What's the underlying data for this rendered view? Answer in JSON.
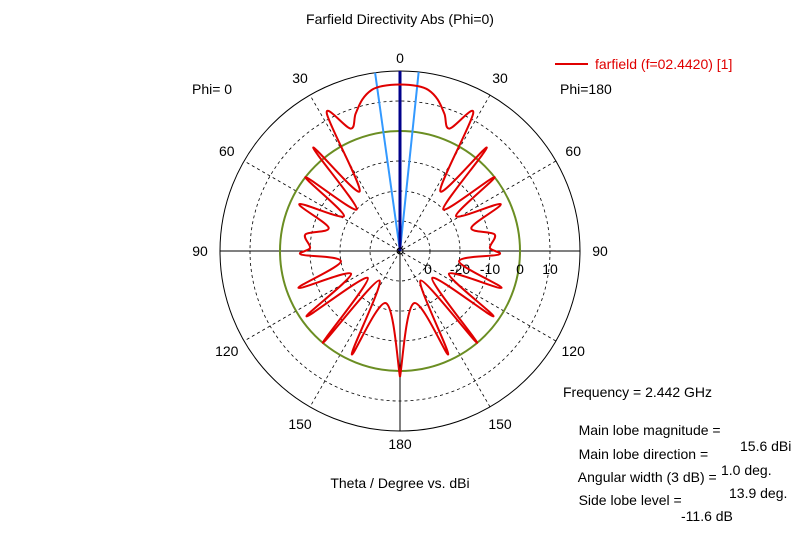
{
  "chart_data": {
    "type": "polar",
    "title": "Farfield Directivity Abs (Phi=0)",
    "xlabel": "Theta / Degree vs. dBi",
    "left_label": "Phi=  0",
    "right_label": "Phi=180",
    "angle_labels": {
      "left": [
        "30",
        "60",
        "90",
        "120",
        "150"
      ],
      "right": [
        "30",
        "60",
        "90",
        "120",
        "150"
      ],
      "top": "0",
      "bottom": "180"
    },
    "radial_tick_labels": [
      "-20",
      "-10",
      "0",
      "10"
    ],
    "radial_range_dB": [
      -40,
      20
    ],
    "grid": true,
    "legend": {
      "position": "top-right",
      "entries": [
        "farfield (f=02.4420) [1]"
      ]
    },
    "series": [
      {
        "name": "farfield (f=02.4420) [1]",
        "color": "#e00000",
        "theta_deg": [
          -180,
          -165,
          -155,
          -145,
          -140,
          -130,
          -125,
          -115,
          -110,
          -100,
          -92,
          -88,
          -80,
          -72,
          -65,
          -58,
          -52,
          -46,
          -40,
          -34,
          -28,
          -22,
          -18,
          -14,
          -10,
          -6,
          0,
          6,
          10,
          14,
          18,
          22,
          28,
          34,
          40,
          46,
          52,
          58,
          65,
          72,
          80,
          88,
          92,
          100,
          110,
          115,
          125,
          130,
          140,
          145,
          155,
          165,
          180
        ],
        "dBi": [
          2,
          -22,
          -2,
          -28,
          0,
          -26,
          -2,
          -22,
          -4,
          -20,
          -7,
          -10,
          -8,
          -15,
          -3,
          -18,
          0,
          -20,
          5,
          -16,
          12,
          4,
          8,
          12,
          14.5,
          15.3,
          15.5,
          15.3,
          14.5,
          12,
          8,
          4,
          12,
          -16,
          5,
          -20,
          0,
          -18,
          -3,
          -15,
          -8,
          -10,
          -7,
          -20,
          -4,
          -22,
          -2,
          -26,
          0,
          -28,
          -2,
          -22,
          2
        ]
      }
    ],
    "reference_circle_dB": 0,
    "reference_circle_color": "#6b8e23",
    "main_lobe_line_color": "#00008b",
    "beamwidth_lines_color": "#3399ff",
    "main_lobe_direction_deg": 1.0,
    "beamwidth_deg": 13.9
  },
  "info": {
    "frequency": "Frequency = 2.442 GHz",
    "main_lobe_magnitude_label": "Main lobe magnitude =",
    "main_lobe_magnitude_value": "15.6 dBi",
    "main_lobe_direction_label": "Main lobe direction =",
    "main_lobe_direction_value": "1.0 deg.",
    "angular_width_label": "Angular width (3 dB) =",
    "angular_width_value": "13.9 deg.",
    "side_lobe_label": "Side lobe level =",
    "side_lobe_value": "-11.6 dB"
  }
}
